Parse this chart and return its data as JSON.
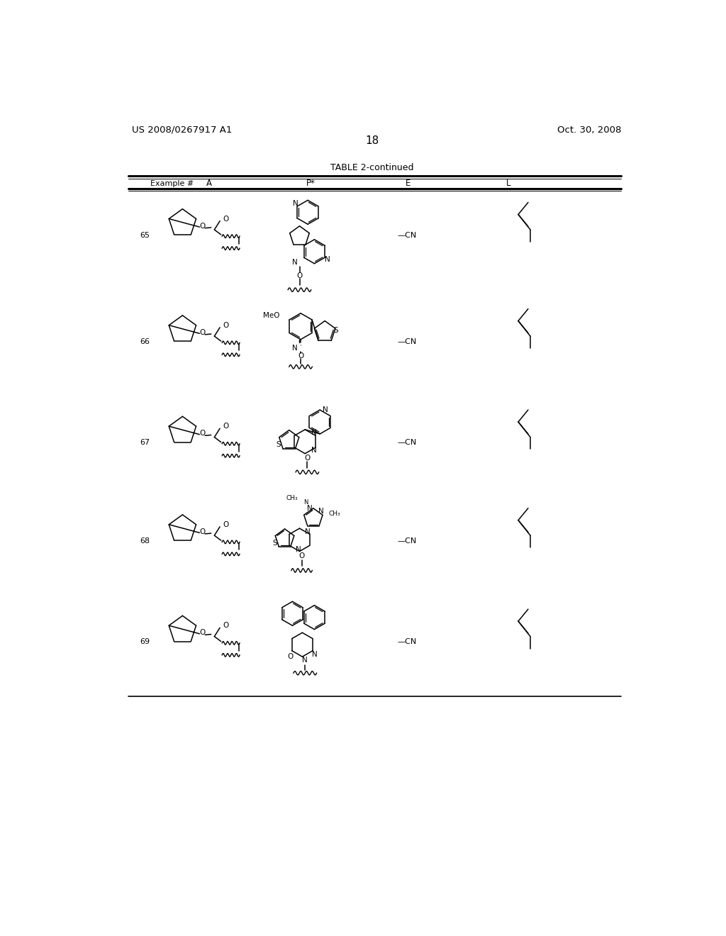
{
  "page_number": "18",
  "patent_number": "US 2008/0267917 A1",
  "patent_date": "Oct. 30, 2008",
  "table_title": "TABLE 2-continued",
  "table_headers": [
    "Example #",
    "A",
    "P*",
    "E",
    "L"
  ],
  "examples": [
    65,
    66,
    67,
    68,
    69
  ],
  "E_values": [
    "—CN",
    "—CN",
    "—CN",
    "—CN",
    "—CN"
  ],
  "background_color": "#ffffff",
  "text_color": "#000000"
}
